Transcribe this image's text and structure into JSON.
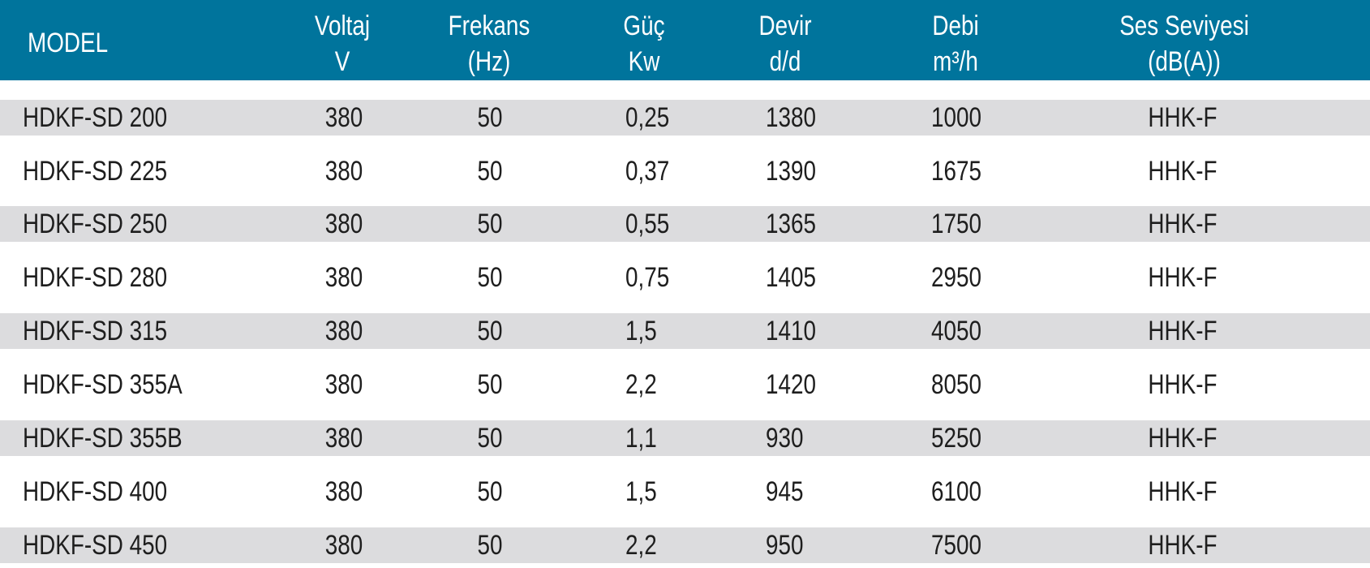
{
  "headers": {
    "model": "MODEL",
    "voltaj": [
      "Voltaj",
      "V"
    ],
    "frekans": [
      "Frekans",
      "(Hz)"
    ],
    "guc": [
      "Güç",
      "Kw"
    ],
    "devir": [
      "Devir",
      "d/d"
    ],
    "debi": [
      "Debi",
      "m³/h"
    ],
    "ses": [
      "Ses Seviyesi",
      "(dB(A))"
    ]
  },
  "colors": {
    "header_bg": "#00749c",
    "header_text": "#ffffff",
    "row_shaded": "#dcdcde",
    "row_plain": "#ffffff"
  },
  "rows": [
    {
      "model": "HDKF-SD 200",
      "voltaj": "380",
      "frekans": "50",
      "guc": "0,25",
      "devir": "1380",
      "debi": "1000",
      "ses": "HHK-F"
    },
    {
      "model": "HDKF-SD 225",
      "voltaj": "380",
      "frekans": "50",
      "guc": "0,37",
      "devir": "1390",
      "debi": "1675",
      "ses": "HHK-F"
    },
    {
      "model": "HDKF-SD 250",
      "voltaj": "380",
      "frekans": "50",
      "guc": "0,55",
      "devir": "1365",
      "debi": "1750",
      "ses": "HHK-F"
    },
    {
      "model": "HDKF-SD 280",
      "voltaj": "380",
      "frekans": "50",
      "guc": "0,75",
      "devir": "1405",
      "debi": "2950",
      "ses": "HHK-F"
    },
    {
      "model": "HDKF-SD 315",
      "voltaj": "380",
      "frekans": "50",
      "guc": "1,5",
      "devir": "1410",
      "debi": "4050",
      "ses": "HHK-F"
    },
    {
      "model": "HDKF-SD 355A",
      "voltaj": "380",
      "frekans": "50",
      "guc": "2,2",
      "devir": "1420",
      "debi": "8050",
      "ses": "HHK-F"
    },
    {
      "model": "HDKF-SD 355B",
      "voltaj": "380",
      "frekans": "50",
      "guc": "1,1",
      "devir": "930",
      "debi": "5250",
      "ses": "HHK-F"
    },
    {
      "model": "HDKF-SD 400",
      "voltaj": "380",
      "frekans": "50",
      "guc": "1,5",
      "devir": "945",
      "debi": "6100",
      "ses": "HHK-F"
    },
    {
      "model": "HDKF-SD 450",
      "voltaj": "380",
      "frekans": "50",
      "guc": "2,2",
      "devir": "950",
      "debi": "7500",
      "ses": "HHK-F"
    }
  ]
}
